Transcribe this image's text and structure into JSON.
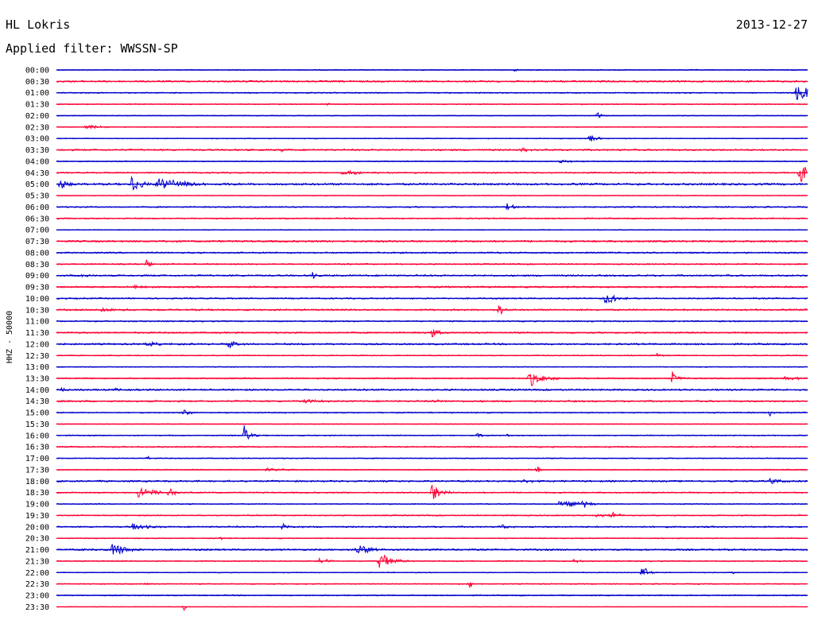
{
  "header": {
    "station": "HL Lokris",
    "date": "2013-12-27",
    "filter": "Applied filter: WWSSN-SP"
  },
  "chart_data": {
    "type": "line",
    "title": "HL Lokris",
    "subtitle": "Applied filter: WWSSN-SP",
    "date": "2013-12-27",
    "ylabel": "HHZ - 50000",
    "colors": {
      "even_hour": "#0000cc",
      "half_hour": "#ff0033"
    },
    "grid": false,
    "traces": [
      {
        "label": "00:00",
        "noise": 0.6,
        "events": [
          {
            "x": 0.61,
            "amp": 2,
            "dur": 0.004
          }
        ]
      },
      {
        "label": "00:30",
        "noise": 1.0,
        "events": []
      },
      {
        "label": "01:00",
        "noise": 0.7,
        "events": [
          {
            "x": 0.985,
            "amp": 9,
            "dur": 0.03
          }
        ]
      },
      {
        "label": "01:30",
        "noise": 0.6,
        "events": [
          {
            "x": 0.36,
            "amp": 2,
            "dur": 0.004
          }
        ]
      },
      {
        "label": "02:00",
        "noise": 0.5,
        "events": [
          {
            "x": 0.72,
            "amp": 4,
            "dur": 0.006
          }
        ]
      },
      {
        "label": "02:30",
        "noise": 0.5,
        "events": [
          {
            "x": 0.04,
            "amp": 4,
            "dur": 0.012
          }
        ]
      },
      {
        "label": "03:00",
        "noise": 0.5,
        "events": [
          {
            "x": 0.71,
            "amp": 5,
            "dur": 0.01
          }
        ]
      },
      {
        "label": "03:30",
        "noise": 1.0,
        "events": [
          {
            "x": 0.3,
            "amp": 2,
            "dur": 0.004
          },
          {
            "x": 0.62,
            "amp": 3,
            "dur": 0.006
          }
        ]
      },
      {
        "label": "04:00",
        "noise": 0.6,
        "events": [
          {
            "x": 0.67,
            "amp": 2,
            "dur": 0.02
          }
        ]
      },
      {
        "label": "04:30",
        "noise": 0.8,
        "events": [
          {
            "x": 0.38,
            "amp": 3,
            "dur": 0.02
          },
          {
            "x": 0.99,
            "amp": 14,
            "dur": 0.03
          }
        ]
      },
      {
        "label": "05:00",
        "noise": 1.2,
        "events": [
          {
            "x": 0.005,
            "amp": 9,
            "dur": 0.006
          },
          {
            "x": 0.1,
            "amp": 11,
            "dur": 0.012
          },
          {
            "x": 0.135,
            "amp": 9,
            "dur": 0.03
          }
        ]
      },
      {
        "label": "05:30",
        "noise": 0.5,
        "events": []
      },
      {
        "label": "06:00",
        "noise": 0.8,
        "events": [
          {
            "x": 0.6,
            "amp": 4,
            "dur": 0.012
          }
        ]
      },
      {
        "label": "06:30",
        "noise": 0.8,
        "events": []
      },
      {
        "label": "07:00",
        "noise": 0.5,
        "events": []
      },
      {
        "label": "07:30",
        "noise": 1.1,
        "events": []
      },
      {
        "label": "08:00",
        "noise": 0.9,
        "events": []
      },
      {
        "label": "08:30",
        "noise": 0.8,
        "events": [
          {
            "x": 0.12,
            "amp": 7,
            "dur": 0.004
          }
        ]
      },
      {
        "label": "09:00",
        "noise": 1.0,
        "events": [
          {
            "x": 0.034,
            "amp": 3,
            "dur": 0.006
          },
          {
            "x": 0.34,
            "amp": 6,
            "dur": 0.003
          }
        ]
      },
      {
        "label": "09:30",
        "noise": 1.0,
        "events": [
          {
            "x": 0.105,
            "amp": 4,
            "dur": 0.006
          },
          {
            "x": 0.41,
            "amp": 3,
            "dur": 0.003
          }
        ]
      },
      {
        "label": "10:00",
        "noise": 0.8,
        "events": [
          {
            "x": 0.73,
            "amp": 7,
            "dur": 0.02
          }
        ]
      },
      {
        "label": "10:30",
        "noise": 1.0,
        "events": [
          {
            "x": 0.06,
            "amp": 3,
            "dur": 0.02
          },
          {
            "x": 0.59,
            "amp": 11,
            "dur": 0.004
          }
        ]
      },
      {
        "label": "11:00",
        "noise": 0.8,
        "events": []
      },
      {
        "label": "11:30",
        "noise": 0.9,
        "events": [
          {
            "x": 0.5,
            "amp": 6,
            "dur": 0.008
          }
        ]
      },
      {
        "label": "12:00",
        "noise": 1.0,
        "events": [
          {
            "x": 0.12,
            "amp": 3,
            "dur": 0.015
          },
          {
            "x": 0.23,
            "amp": 5,
            "dur": 0.008
          }
        ]
      },
      {
        "label": "12:30",
        "noise": 0.6,
        "events": [
          {
            "x": 0.8,
            "amp": 3,
            "dur": 0.004
          }
        ]
      },
      {
        "label": "13:00",
        "noise": 0.5,
        "events": []
      },
      {
        "label": "13:30",
        "noise": 0.8,
        "events": [
          {
            "x": 0.63,
            "amp": 11,
            "dur": 0.015
          },
          {
            "x": 0.82,
            "amp": 8,
            "dur": 0.006
          },
          {
            "x": 0.97,
            "amp": 3,
            "dur": 0.02
          }
        ]
      },
      {
        "label": "14:00",
        "noise": 1.0,
        "events": [
          {
            "x": 0.005,
            "amp": 4,
            "dur": 0.006
          },
          {
            "x": 0.08,
            "amp": 3,
            "dur": 0.006
          }
        ]
      },
      {
        "label": "14:30",
        "noise": 1.0,
        "events": [
          {
            "x": 0.33,
            "amp": 3,
            "dur": 0.015
          },
          {
            "x": 0.5,
            "amp": 2,
            "dur": 0.01
          }
        ]
      },
      {
        "label": "15:00",
        "noise": 0.7,
        "events": [
          {
            "x": 0.17,
            "amp": 3,
            "dur": 0.012
          },
          {
            "x": 0.95,
            "amp": 4,
            "dur": 0.003
          }
        ]
      },
      {
        "label": "15:30",
        "noise": 0.4,
        "events": []
      },
      {
        "label": "16:00",
        "noise": 0.7,
        "events": [
          {
            "x": 0.25,
            "amp": 14,
            "dur": 0.006
          },
          {
            "x": 0.56,
            "amp": 3,
            "dur": 0.006
          },
          {
            "x": 0.6,
            "amp": 2,
            "dur": 0.01
          }
        ]
      },
      {
        "label": "16:30",
        "noise": 0.8,
        "events": []
      },
      {
        "label": "17:00",
        "noise": 0.6,
        "events": [
          {
            "x": 0.12,
            "amp": 4,
            "dur": 0.003
          }
        ]
      },
      {
        "label": "17:30",
        "noise": 0.6,
        "events": [
          {
            "x": 0.28,
            "amp": 2,
            "dur": 0.02
          },
          {
            "x": 0.64,
            "amp": 5,
            "dur": 0.004
          }
        ]
      },
      {
        "label": "18:00",
        "noise": 1.0,
        "events": [
          {
            "x": 0.62,
            "amp": 3,
            "dur": 0.015
          },
          {
            "x": 0.95,
            "amp": 4,
            "dur": 0.01
          }
        ]
      },
      {
        "label": "18:30",
        "noise": 0.8,
        "events": [
          {
            "x": 0.11,
            "amp": 9,
            "dur": 0.015
          },
          {
            "x": 0.15,
            "amp": 6,
            "dur": 0.01
          },
          {
            "x": 0.5,
            "amp": 12,
            "dur": 0.01
          }
        ]
      },
      {
        "label": "19:00",
        "noise": 0.6,
        "events": [
          {
            "x": 0.67,
            "amp": 7,
            "dur": 0.02
          },
          {
            "x": 0.7,
            "amp": 5,
            "dur": 0.01
          }
        ]
      },
      {
        "label": "19:30",
        "noise": 0.7,
        "events": [
          {
            "x": 0.72,
            "amp": 3,
            "dur": 0.02
          },
          {
            "x": 0.74,
            "amp": 6,
            "dur": 0.006
          }
        ]
      },
      {
        "label": "20:00",
        "noise": 0.9,
        "events": [
          {
            "x": 0.1,
            "amp": 5,
            "dur": 0.015
          },
          {
            "x": 0.3,
            "amp": 4,
            "dur": 0.01
          },
          {
            "x": 0.59,
            "amp": 3,
            "dur": 0.012
          }
        ]
      },
      {
        "label": "20:30",
        "noise": 0.6,
        "events": [
          {
            "x": 0.22,
            "amp": 2,
            "dur": 0.006
          }
        ]
      },
      {
        "label": "21:00",
        "noise": 1.0,
        "events": [
          {
            "x": 0.035,
            "amp": 3,
            "dur": 0.003
          },
          {
            "x": 0.075,
            "amp": 12,
            "dur": 0.012
          },
          {
            "x": 0.4,
            "amp": 9,
            "dur": 0.015
          }
        ]
      },
      {
        "label": "21:30",
        "noise": 0.7,
        "events": [
          {
            "x": 0.35,
            "amp": 5,
            "dur": 0.01
          },
          {
            "x": 0.43,
            "amp": 12,
            "dur": 0.015
          },
          {
            "x": 0.69,
            "amp": 3,
            "dur": 0.006
          }
        ]
      },
      {
        "label": "22:00",
        "noise": 0.5,
        "events": [
          {
            "x": 0.78,
            "amp": 10,
            "dur": 0.006
          },
          {
            "x": 0.9,
            "amp": 2,
            "dur": 0.003
          }
        ]
      },
      {
        "label": "22:30",
        "noise": 0.6,
        "events": [
          {
            "x": 0.12,
            "amp": 2,
            "dur": 0.003
          },
          {
            "x": 0.55,
            "amp": 7,
            "dur": 0.004
          }
        ]
      },
      {
        "label": "23:00",
        "noise": 0.7,
        "events": []
      },
      {
        "label": "23:30",
        "noise": 0.3,
        "events": [
          {
            "x": 0.17,
            "amp": 5,
            "dur": 0.002
          }
        ]
      }
    ]
  }
}
